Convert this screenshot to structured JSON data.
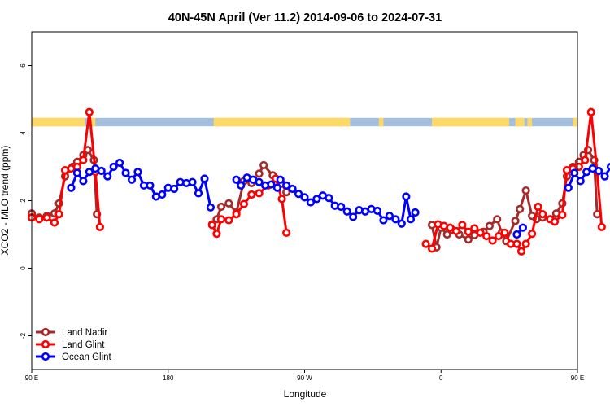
{
  "chart_data": {
    "type": "line",
    "title": "40N-45N April (Ver 11.2)   2014-09-06 to 2024-07-31",
    "xlabel": "Longitude",
    "ylabel": "XCO2 - MLO trend (ppm)",
    "xlim": [
      90,
      450
    ],
    "ylim": [
      -3,
      7
    ],
    "x_ticks": [
      {
        "value": 90,
        "label": "90 E"
      },
      {
        "value": 180,
        "label": "180"
      },
      {
        "value": 270,
        "label": "90 W"
      },
      {
        "value": 360,
        "label": "0"
      },
      {
        "value": 450,
        "label": "90 E"
      },
      {
        "value": 540,
        "label": "180"
      }
    ],
    "y_ticks": [
      {
        "value": -2,
        "label": "-2"
      },
      {
        "value": 0,
        "label": "0"
      },
      {
        "value": 2,
        "label": "2"
      },
      {
        "value": 4,
        "label": "4"
      },
      {
        "value": 6,
        "label": "6"
      }
    ],
    "grid": false,
    "legend_position": "bottom-left",
    "land_ocean_strip": {
      "y_range": [
        4.2,
        4.45
      ],
      "land_color": "#FFD966",
      "ocean_color": "#A4BEDD",
      "land_segments": [
        [
          90,
          125
        ],
        [
          128,
          132
        ],
        [
          210,
          300
        ],
        [
          319,
          322
        ],
        [
          354,
          405
        ],
        [
          409,
          415
        ],
        [
          417,
          420
        ],
        [
          447,
          480
        ],
        [
          488,
          492
        ]
      ]
    },
    "series": [
      {
        "name": "Land Nadir",
        "color": "#A52A2A",
        "segments": [
          [
            [
              90,
              1.62
            ],
            [
              95,
              1.5
            ],
            [
              100,
              1.55
            ],
            [
              105,
              1.62
            ],
            [
              108,
              1.92
            ],
            [
              112,
              2.72
            ],
            [
              117,
              3.0
            ],
            [
              120,
              3.15
            ],
            [
              124,
              3.35
            ],
            [
              127,
              3.5
            ],
            [
              131,
              3.2
            ],
            [
              133,
              1.6
            ]
          ],
          [
            [
              209,
              1.3
            ],
            [
              212,
              1.45
            ],
            [
              215,
              1.82
            ],
            [
              220,
              1.92
            ],
            [
              225,
              1.65
            ],
            [
              230,
              2.58
            ],
            [
              235,
              2.52
            ],
            [
              240,
              2.8
            ],
            [
              243,
              3.05
            ],
            [
              249,
              2.75
            ],
            [
              255,
              2.5
            ],
            [
              258,
              2.25
            ]
          ],
          [
            [
              354,
              1.28
            ],
            [
              357,
              0.62
            ],
            [
              360,
              1.2
            ],
            [
              364,
              1.0
            ],
            [
              368,
              1.12
            ],
            [
              372,
              1.0
            ],
            [
              378,
              0.85
            ],
            [
              382,
              0.98
            ],
            [
              388,
              1.08
            ],
            [
              392,
              1.25
            ],
            [
              397,
              1.45
            ],
            [
              400,
              1.05
            ],
            [
              403,
              0.8
            ],
            [
              409,
              1.4
            ],
            [
              412,
              1.75
            ],
            [
              416,
              2.3
            ],
            [
              420,
              1.55
            ],
            [
              423,
              1.45
            ],
            [
              427,
              1.5
            ],
            [
              432,
              1.45
            ],
            [
              436,
              1.62
            ],
            [
              440,
              1.92
            ],
            [
              443,
              2.72
            ],
            [
              447,
              3.0
            ],
            [
              451,
              3.15
            ],
            [
              454,
              3.35
            ],
            [
              457,
              3.5
            ],
            [
              461,
              3.2
            ],
            [
              463,
              1.6
            ]
          ]
        ]
      },
      {
        "name": "Land Glint",
        "color": "#FF0000",
        "segments": [
          [
            [
              90,
              1.5
            ],
            [
              95,
              1.45
            ],
            [
              100,
              1.5
            ],
            [
              105,
              1.35
            ],
            [
              108,
              1.6
            ],
            [
              112,
              2.9
            ],
            [
              116,
              2.95
            ],
            [
              120,
              3.0
            ],
            [
              124,
              3.2
            ],
            [
              128,
              4.62
            ],
            [
              132,
              2.85
            ],
            [
              135,
              1.22
            ]
          ],
          [
            [
              209,
              1.28
            ],
            [
              212,
              1.02
            ],
            [
              215,
              1.45
            ],
            [
              220,
              1.42
            ],
            [
              225,
              1.6
            ],
            [
              230,
              1.9
            ],
            [
              235,
              2.18
            ],
            [
              240,
              2.22
            ],
            [
              246,
              2.45
            ],
            [
              251,
              2.65
            ],
            [
              255,
              2.05
            ],
            [
              258,
              1.05
            ]
          ],
          [
            [
              350,
              0.72
            ],
            [
              354,
              0.58
            ],
            [
              358,
              1.3
            ],
            [
              362,
              1.25
            ],
            [
              366,
              1.2
            ],
            [
              370,
              1.1
            ],
            [
              374,
              1.28
            ],
            [
              378,
              1.08
            ],
            [
              382,
              1.18
            ],
            [
              386,
              1.05
            ],
            [
              390,
              0.95
            ],
            [
              394,
              0.82
            ],
            [
              398,
              0.95
            ],
            [
              402,
              1.05
            ],
            [
              406,
              0.72
            ],
            [
              410,
              0.72
            ],
            [
              413,
              0.5
            ],
            [
              416,
              0.72
            ],
            [
              420,
              1.02
            ],
            [
              424,
              1.82
            ],
            [
              427,
              1.6
            ],
            [
              432,
              1.45
            ],
            [
              435,
              1.38
            ],
            [
              440,
              1.58
            ],
            [
              443,
              2.9
            ],
            [
              447,
              2.95
            ],
            [
              451,
              3.0
            ],
            [
              455,
              3.2
            ],
            [
              459,
              4.62
            ],
            [
              463,
              2.85
            ],
            [
              466,
              1.22
            ]
          ]
        ]
      },
      {
        "name": "Ocean Glint",
        "color": "#0000FF",
        "segments": [
          [
            [
              116,
              2.38
            ],
            [
              120,
              2.82
            ],
            [
              124,
              2.58
            ],
            [
              128,
              2.85
            ],
            [
              132,
              2.95
            ],
            [
              136,
              2.88
            ],
            [
              140,
              2.72
            ],
            [
              144,
              3.0
            ],
            [
              148,
              3.12
            ],
            [
              152,
              2.82
            ],
            [
              156,
              2.62
            ],
            [
              160,
              2.85
            ],
            [
              164,
              2.45
            ],
            [
              168,
              2.45
            ],
            [
              172,
              2.12
            ],
            [
              176,
              2.18
            ],
            [
              180,
              2.38
            ],
            [
              184,
              2.35
            ],
            [
              188,
              2.55
            ],
            [
              192,
              2.52
            ],
            [
              196,
              2.55
            ],
            [
              200,
              2.22
            ],
            [
              204,
              2.65
            ],
            [
              208,
              1.8
            ]
          ],
          [
            [
              254,
              2.62
            ],
            [
              258,
              2.45
            ],
            [
              262,
              2.35
            ],
            [
              266,
              2.2
            ],
            [
              270,
              2.1
            ],
            [
              274,
              1.95
            ],
            [
              278,
              2.05
            ],
            [
              282,
              2.15
            ],
            [
              286,
              2.08
            ],
            [
              290,
              1.85
            ],
            [
              294,
              1.82
            ],
            [
              298,
              1.68
            ],
            [
              302,
              1.52
            ],
            [
              306,
              1.72
            ],
            [
              310,
              1.68
            ],
            [
              314,
              1.75
            ],
            [
              318,
              1.7
            ],
            [
              322,
              1.42
            ],
            [
              326,
              1.55
            ],
            [
              330,
              1.45
            ],
            [
              334,
              1.32
            ],
            [
              337,
              2.12
            ],
            [
              340,
              1.45
            ],
            [
              343,
              1.65
            ]
          ],
          [
            [
              225,
              2.62
            ],
            [
              228,
              2.45
            ],
            [
              232,
              2.68
            ],
            [
              236,
              2.62
            ],
            [
              240,
              2.55
            ],
            [
              244,
              2.45
            ],
            [
              248,
              2.48
            ],
            [
              252,
              2.38
            ]
          ],
          [
            [
              410,
              1.0
            ],
            [
              414,
              1.2
            ]
          ],
          [
            [
              444,
              2.38
            ],
            [
              448,
              2.82
            ],
            [
              452,
              2.58
            ],
            [
              456,
              2.85
            ],
            [
              460,
              2.95
            ],
            [
              464,
              2.88
            ],
            [
              468,
              2.72
            ],
            [
              472,
              3.0
            ],
            [
              476,
              3.12
            ],
            [
              480,
              2.82
            ],
            [
              484,
              2.62
            ],
            [
              488,
              2.85
            ]
          ]
        ]
      }
    ]
  }
}
